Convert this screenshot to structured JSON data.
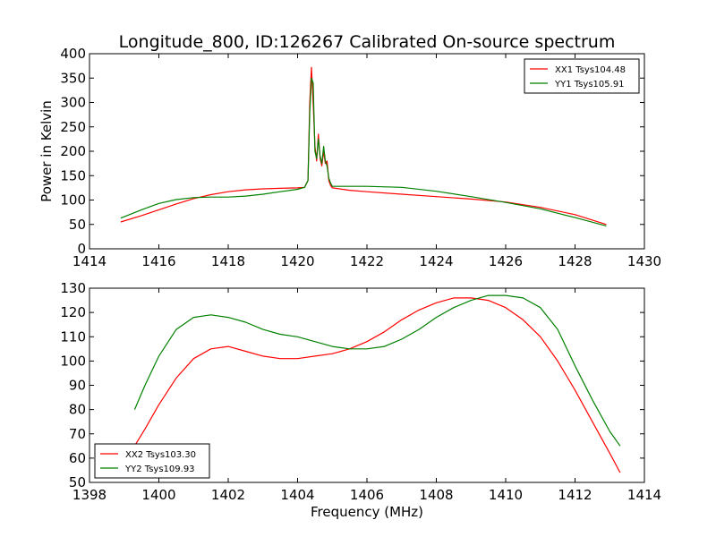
{
  "figure": {
    "title": "Longitude_800, ID:126267 Calibrated On-source spectrum"
  },
  "chart_data": [
    {
      "type": "line",
      "title": "Longitude_800, ID:126267 Calibrated On-source spectrum",
      "xlabel": "",
      "ylabel": "Power in Kelvin",
      "xlim": [
        1414,
        1430
      ],
      "ylim": [
        0,
        400
      ],
      "xticks": [
        1414,
        1416,
        1418,
        1420,
        1422,
        1424,
        1426,
        1428,
        1430
      ],
      "yticks": [
        0,
        50,
        100,
        150,
        200,
        250,
        300,
        350,
        400
      ],
      "grid": false,
      "legend_position": "top-right",
      "series": [
        {
          "name": "XX1 Tsys104.48",
          "color": "#ff0000",
          "x": [
            1414.9,
            1415.5,
            1416.0,
            1416.5,
            1417.0,
            1417.5,
            1418.0,
            1418.5,
            1419.0,
            1419.5,
            1420.0,
            1420.2,
            1420.3,
            1420.35,
            1420.4,
            1420.45,
            1420.5,
            1420.55,
            1420.6,
            1420.65,
            1420.7,
            1420.75,
            1420.8,
            1420.85,
            1420.9,
            1420.95,
            1421.0,
            1421.5,
            1422.0,
            1423.0,
            1424.0,
            1425.0,
            1426.0,
            1427.0,
            1428.0,
            1428.9
          ],
          "y": [
            55,
            68,
            80,
            92,
            103,
            111,
            117,
            121,
            123,
            124,
            125,
            126,
            140,
            300,
            372,
            300,
            210,
            180,
            235,
            185,
            170,
            200,
            175,
            180,
            140,
            130,
            125,
            120,
            117,
            112,
            107,
            102,
            96,
            85,
            70,
            50
          ]
        },
        {
          "name": "YY1 Tsys105.91",
          "color": "#008000",
          "x": [
            1414.9,
            1415.5,
            1416.0,
            1416.5,
            1417.0,
            1417.5,
            1418.0,
            1418.5,
            1419.0,
            1419.5,
            1420.0,
            1420.2,
            1420.3,
            1420.35,
            1420.4,
            1420.45,
            1420.5,
            1420.55,
            1420.6,
            1420.65,
            1420.7,
            1420.75,
            1420.8,
            1420.85,
            1420.9,
            1420.95,
            1421.0,
            1421.5,
            1422.0,
            1423.0,
            1424.0,
            1425.0,
            1426.0,
            1427.0,
            1428.0,
            1428.9
          ],
          "y": [
            63,
            80,
            93,
            101,
            105,
            106,
            106,
            108,
            112,
            117,
            122,
            126,
            140,
            280,
            350,
            340,
            200,
            185,
            225,
            190,
            175,
            210,
            180,
            170,
            145,
            135,
            128,
            128,
            128,
            126,
            118,
            107,
            95,
            82,
            64,
            47
          ]
        }
      ]
    },
    {
      "type": "line",
      "title": "",
      "xlabel": "Frequency (MHz)",
      "ylabel": "",
      "xlim": [
        1398,
        1414
      ],
      "ylim": [
        50,
        130
      ],
      "xticks": [
        1398,
        1400,
        1402,
        1404,
        1406,
        1408,
        1410,
        1412,
        1414
      ],
      "yticks": [
        50,
        60,
        70,
        80,
        90,
        100,
        110,
        120,
        130
      ],
      "grid": false,
      "legend_position": "bottom-left",
      "series": [
        {
          "name": "XX2 Tsys103.30",
          "color": "#ff0000",
          "x": [
            1399.3,
            1399.6,
            1400.0,
            1400.5,
            1401.0,
            1401.5,
            1402.0,
            1402.5,
            1403.0,
            1403.5,
            1404.0,
            1404.5,
            1405.0,
            1405.5,
            1406.0,
            1406.5,
            1407.0,
            1407.5,
            1408.0,
            1408.5,
            1409.0,
            1409.5,
            1410.0,
            1410.5,
            1411.0,
            1411.5,
            1412.0,
            1412.5,
            1413.0,
            1413.3
          ],
          "y": [
            65,
            72,
            82,
            93,
            101,
            105,
            106,
            104,
            102,
            101,
            101,
            102,
            103,
            105,
            108,
            112,
            117,
            121,
            124,
            126,
            126,
            125,
            122,
            117,
            110,
            100,
            88,
            75,
            62,
            54
          ]
        },
        {
          "name": "YY2 Tsys109.93",
          "color": "#008000",
          "x": [
            1399.3,
            1399.6,
            1400.0,
            1400.5,
            1401.0,
            1401.5,
            1402.0,
            1402.5,
            1403.0,
            1403.5,
            1404.0,
            1404.5,
            1405.0,
            1405.5,
            1406.0,
            1406.5,
            1407.0,
            1407.5,
            1408.0,
            1408.5,
            1409.0,
            1409.5,
            1410.0,
            1410.5,
            1411.0,
            1411.5,
            1412.0,
            1412.5,
            1413.0,
            1413.3
          ],
          "y": [
            80,
            90,
            102,
            113,
            118,
            119,
            118,
            116,
            113,
            111,
            110,
            108,
            106,
            105,
            105,
            106,
            109,
            113,
            118,
            122,
            125,
            127,
            127,
            126,
            122,
            113,
            98,
            84,
            71,
            65
          ]
        }
      ]
    }
  ]
}
